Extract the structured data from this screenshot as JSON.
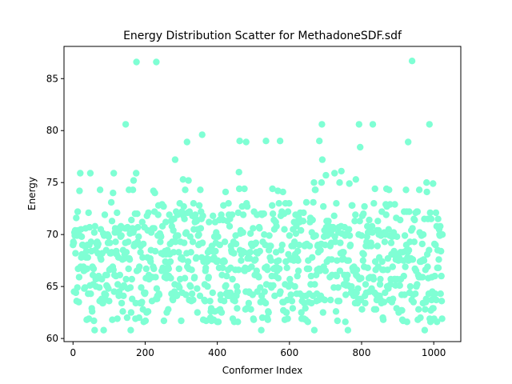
{
  "chart_data": {
    "type": "scatter",
    "title": "Energy Distribution Scatter for MethadoneSDF.sdf",
    "xlabel": "Conformer Index",
    "ylabel": "Energy",
    "xlim": [
      -25,
      1075
    ],
    "ylim": [
      59.7,
      88.1
    ],
    "x_ticks": [
      0,
      200,
      400,
      600,
      800,
      1000
    ],
    "y_ticks": [
      60,
      65,
      70,
      75,
      80,
      85
    ],
    "grid": false,
    "marker_color": "#7fffd4",
    "point_count": 1025,
    "x": [],
    "y": [],
    "notable_points": [
      {
        "x": 176,
        "y": 86.6
      },
      {
        "x": 231,
        "y": 86.6
      },
      {
        "x": 940,
        "y": 86.7
      },
      {
        "x": 146,
        "y": 80.6
      },
      {
        "x": 358,
        "y": 79.6
      },
      {
        "x": 690,
        "y": 80.6
      },
      {
        "x": 793,
        "y": 80.6
      },
      {
        "x": 831,
        "y": 80.6
      },
      {
        "x": 988,
        "y": 80.6
      },
      {
        "x": 796,
        "y": 78.4
      },
      {
        "x": 683,
        "y": 79.0
      },
      {
        "x": 929,
        "y": 78.9
      },
      {
        "x": 316,
        "y": 78.9
      },
      {
        "x": 462,
        "y": 79.0
      },
      {
        "x": 480,
        "y": 78.9
      },
      {
        "x": 535,
        "y": 79.0
      },
      {
        "x": 574,
        "y": 79.0
      },
      {
        "x": 283,
        "y": 77.2
      },
      {
        "x": 691,
        "y": 77.2
      },
      {
        "x": 20,
        "y": 75.9
      },
      {
        "x": 113,
        "y": 75.9
      },
      {
        "x": 60,
        "y": 60.8
      },
      {
        "x": 85,
        "y": 60.8
      },
      {
        "x": 160,
        "y": 60.8
      },
      {
        "x": 522,
        "y": 60.8
      },
      {
        "x": 669,
        "y": 60.8
      },
      {
        "x": 762,
        "y": 60.8
      },
      {
        "x": 975,
        "y": 60.8
      }
    ]
  }
}
